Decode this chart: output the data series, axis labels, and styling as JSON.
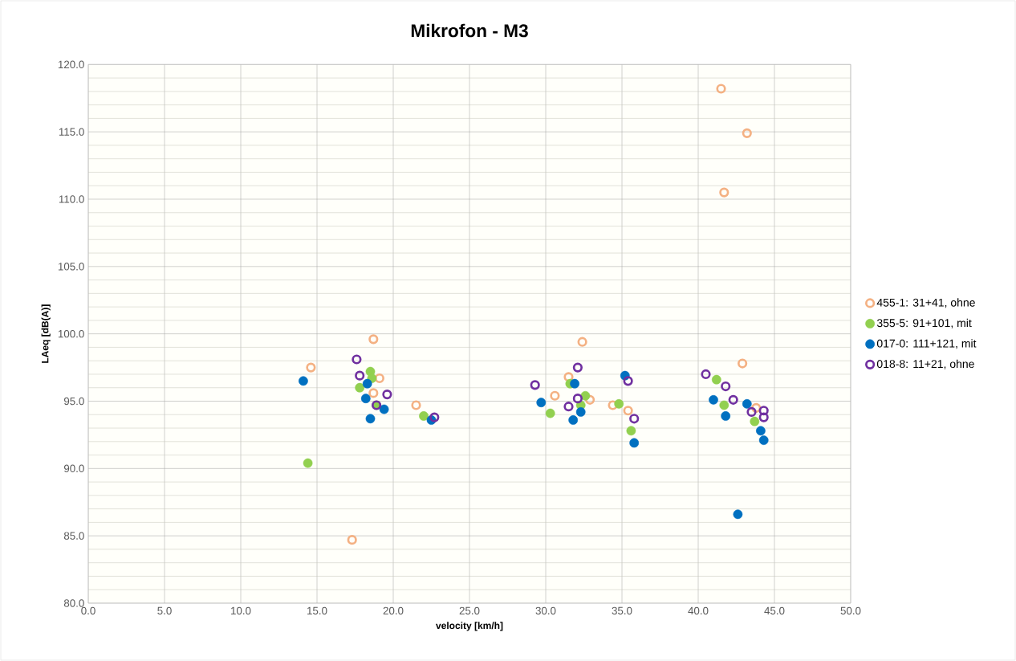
{
  "chart_data": {
    "type": "scatter",
    "title": "Mikrofon - M3",
    "xlabel": "velocity [km/h]",
    "ylabel": "LAeq [dB(A)]",
    "xlim": [
      0,
      50
    ],
    "ylim": [
      80,
      120
    ],
    "xticks": [
      {
        "value": 0,
        "label": "0.0"
      },
      {
        "value": 5,
        "label": "5.0"
      },
      {
        "value": 10,
        "label": "10.0"
      },
      {
        "value": 15,
        "label": "15.0"
      },
      {
        "value": 20,
        "label": "20.0"
      },
      {
        "value": 25,
        "label": "25.0"
      },
      {
        "value": 30,
        "label": "30.0"
      },
      {
        "value": 35,
        "label": "35.0"
      },
      {
        "value": 40,
        "label": "40.0"
      },
      {
        "value": 45,
        "label": "45.0"
      },
      {
        "value": 50,
        "label": "50.0"
      }
    ],
    "yticks": [
      {
        "value": 80,
        "label": "80.0"
      },
      {
        "value": 85,
        "label": "85.0"
      },
      {
        "value": 90,
        "label": "90.0"
      },
      {
        "value": 95,
        "label": "95.0"
      },
      {
        "value": 100,
        "label": "100.0"
      },
      {
        "value": 105,
        "label": "105.0"
      },
      {
        "value": 110,
        "label": "110.0"
      },
      {
        "value": 115,
        "label": "115.0"
      },
      {
        "value": 120,
        "label": "120.0"
      }
    ],
    "grid": true,
    "legend": "right",
    "marker": "circle",
    "series": [
      {
        "name": "455-1: 31+41, ohne",
        "color": "#f4b183",
        "marker": "circle open",
        "x": [
          14.6,
          17.3,
          18.7,
          19.1,
          18.7,
          21.5,
          32.4,
          31.5,
          30.6,
          32.9,
          34.4,
          35.4,
          43.2,
          41.7,
          41.5,
          42.9,
          43.8
        ],
        "values": [
          97.5,
          84.7,
          99.6,
          96.7,
          95.6,
          94.7,
          99.4,
          96.8,
          95.4,
          95.1,
          94.7,
          94.3,
          114.9,
          110.5,
          118.2,
          97.8,
          94.5
        ]
      },
      {
        "name": "355-5: 91+101, mit",
        "color": "#92d050",
        "x": [
          14.4,
          18.5,
          17.8,
          18.6,
          18.9,
          22.0,
          30.3,
          31.6,
          32.6,
          32.3,
          34.8,
          35.6,
          41.2,
          41.7,
          43.7
        ],
        "values": [
          90.4,
          97.2,
          96.0,
          96.7,
          94.7,
          93.9,
          94.1,
          96.3,
          95.4,
          94.7,
          94.8,
          92.8,
          96.6,
          94.7,
          93.5
        ]
      },
      {
        "name": "017-0: 111+121, mit",
        "color": "#0070c0",
        "x": [
          14.1,
          18.3,
          18.2,
          18.5,
          19.4,
          22.5,
          29.7,
          31.9,
          32.3,
          31.8,
          35.2,
          35.8,
          41.0,
          41.8,
          43.2,
          44.1,
          44.3,
          42.6
        ],
        "values": [
          96.5,
          96.3,
          95.2,
          93.7,
          94.4,
          93.6,
          94.9,
          96.3,
          94.2,
          93.6,
          96.9,
          91.9,
          95.1,
          93.9,
          94.8,
          92.8,
          92.1,
          86.6
        ]
      },
      {
        "name": "018-8: 11+21, ohne",
        "color": "#7030a0",
        "marker": "circle open",
        "x": [
          17.6,
          17.8,
          19.6,
          18.9,
          22.7,
          29.3,
          32.1,
          32.1,
          31.5,
          35.4,
          35.8,
          40.5,
          41.8,
          42.3,
          43.5,
          44.3,
          44.3
        ],
        "values": [
          98.1,
          96.9,
          95.5,
          94.7,
          93.8,
          96.2,
          97.5,
          95.2,
          94.6,
          96.5,
          93.7,
          97.0,
          96.1,
          95.1,
          94.2,
          94.3,
          93.8
        ]
      }
    ]
  }
}
